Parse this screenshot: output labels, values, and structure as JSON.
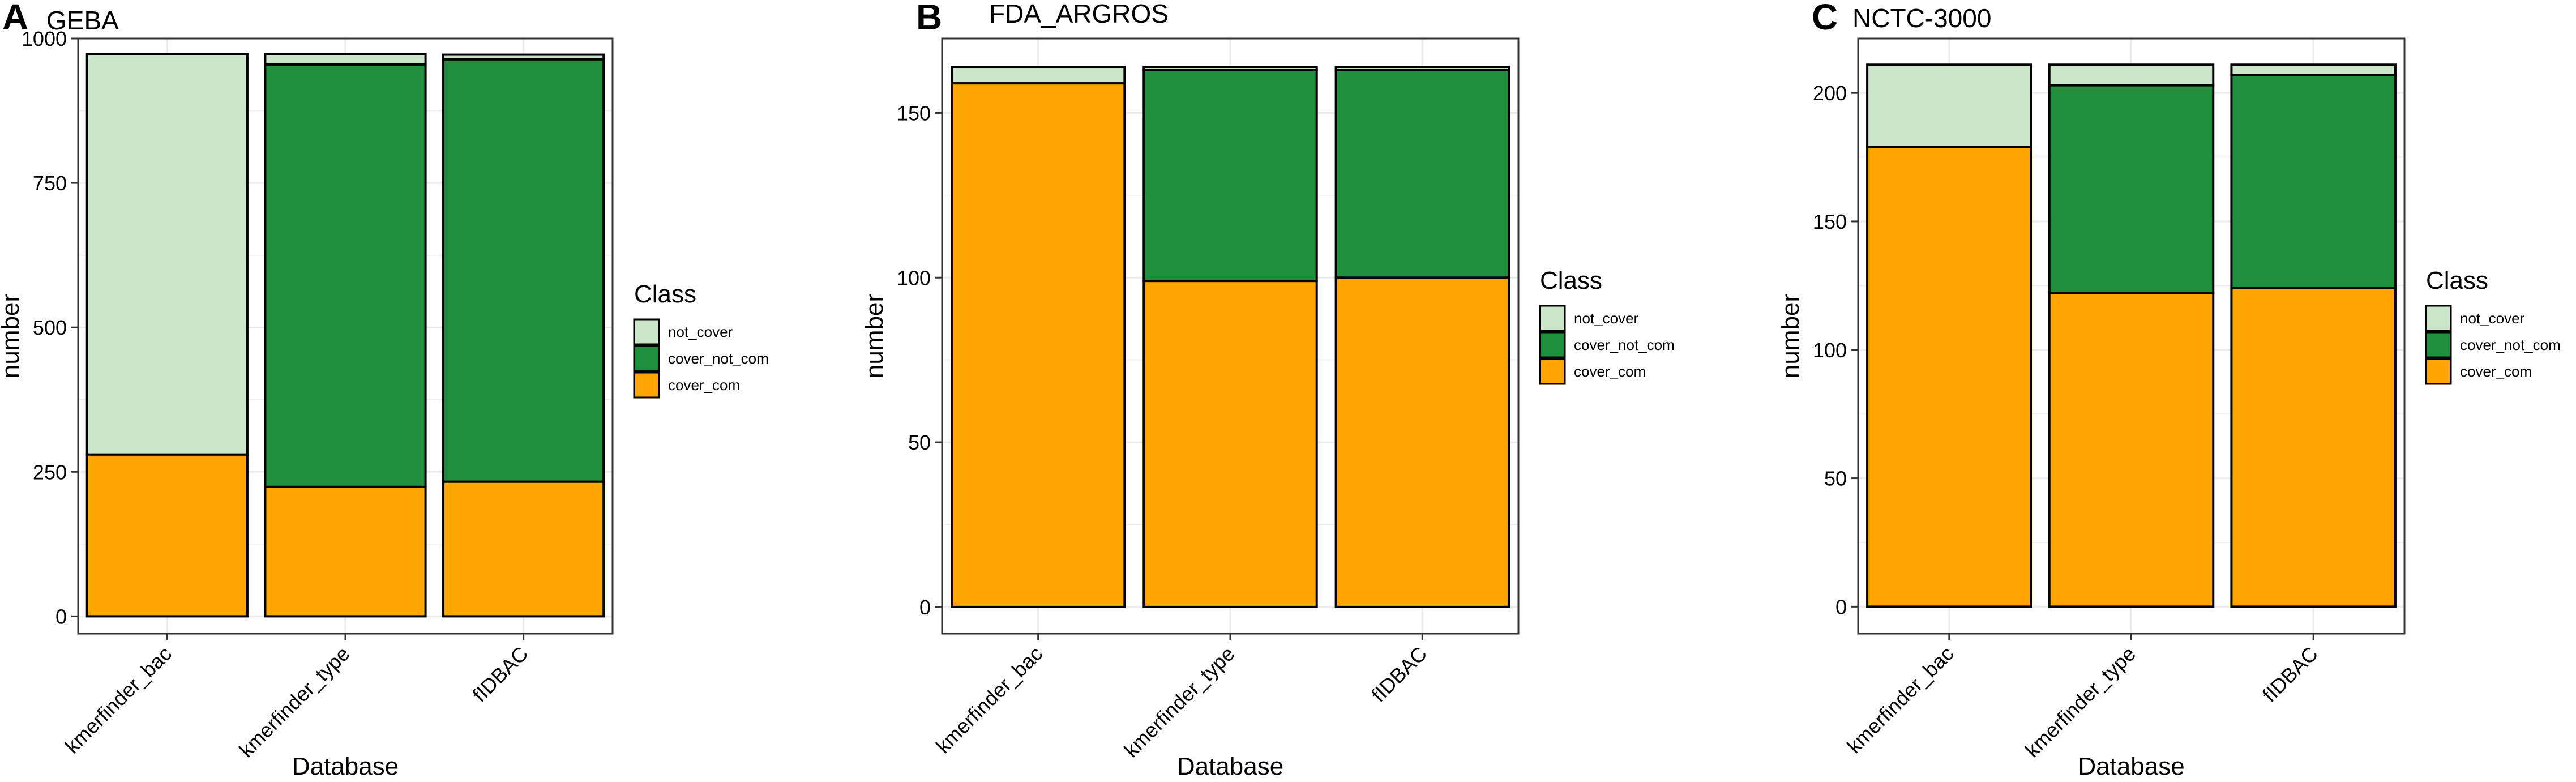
{
  "colors": {
    "not_cover": "#cce6cc",
    "cover_not_com": "#1f8f3d",
    "cover_com": "#ffa500",
    "panel_border": "#333333",
    "grid": "#ebebeb",
    "tick": "#333333"
  },
  "chart_data": [
    {
      "panel_label": "A",
      "type": "bar",
      "stacked": true,
      "title": "GEBA",
      "xlabel": "Database",
      "ylabel": "number",
      "categories": [
        "kmerfinder_bac",
        "kmerfinder_type",
        "fIDBAC"
      ],
      "yticks": [
        0,
        250,
        500,
        750,
        1000
      ],
      "ytick_labels": [
        "0",
        "250",
        "500",
        "750",
        "1000"
      ],
      "ylim": [
        -30,
        1000
      ],
      "legend": {
        "title": "Class",
        "entries": [
          "not_cover",
          "cover_not_com",
          "cover_com"
        ],
        "position": "right"
      },
      "series": [
        {
          "name": "cover_com",
          "values": [
            280,
            224,
            233
          ]
        },
        {
          "name": "cover_not_com",
          "values": [
            0,
            731,
            731
          ]
        },
        {
          "name": "not_cover",
          "values": [
            693,
            18,
            8
          ]
        }
      ]
    },
    {
      "panel_label": "B",
      "type": "bar",
      "stacked": true,
      "title": "FDA_ARGROS",
      "xlabel": "Database",
      "ylabel": "number",
      "categories": [
        "kmerfinder_bac",
        "kmerfinder_type",
        "fIDBAC"
      ],
      "yticks": [
        0,
        50,
        100,
        150
      ],
      "ytick_labels": [
        "0",
        "50",
        "100",
        "150"
      ],
      "ylim": [
        -8.1,
        172.6
      ],
      "legend": {
        "title": "Class",
        "entries": [
          "not_cover",
          "cover_not_com",
          "cover_com"
        ],
        "position": "right"
      },
      "series": [
        {
          "name": "cover_com",
          "values": [
            159,
            99,
            100
          ]
        },
        {
          "name": "cover_not_com",
          "values": [
            0,
            64,
            63
          ]
        },
        {
          "name": "not_cover",
          "values": [
            5,
            1,
            1
          ]
        }
      ]
    },
    {
      "panel_label": "C",
      "type": "bar",
      "stacked": true,
      "title": "NCTC-3000",
      "xlabel": "Database",
      "ylabel": "number",
      "categories": [
        "kmerfinder_bac",
        "kmerfinder_type",
        "fIDBAC"
      ],
      "yticks": [
        0,
        50,
        100,
        150,
        200
      ],
      "ytick_labels": [
        "0",
        "50",
        "100",
        "150",
        "200"
      ],
      "ylim": [
        -10.5,
        221.2
      ],
      "legend": {
        "title": "Class",
        "entries": [
          "not_cover",
          "cover_not_com",
          "cover_com"
        ],
        "position": "right"
      },
      "series": [
        {
          "name": "cover_com",
          "values": [
            179,
            122,
            124
          ]
        },
        {
          "name": "cover_not_com",
          "values": [
            0,
            81,
            83
          ]
        },
        {
          "name": "not_cover",
          "values": [
            32,
            8,
            4
          ]
        }
      ]
    }
  ]
}
